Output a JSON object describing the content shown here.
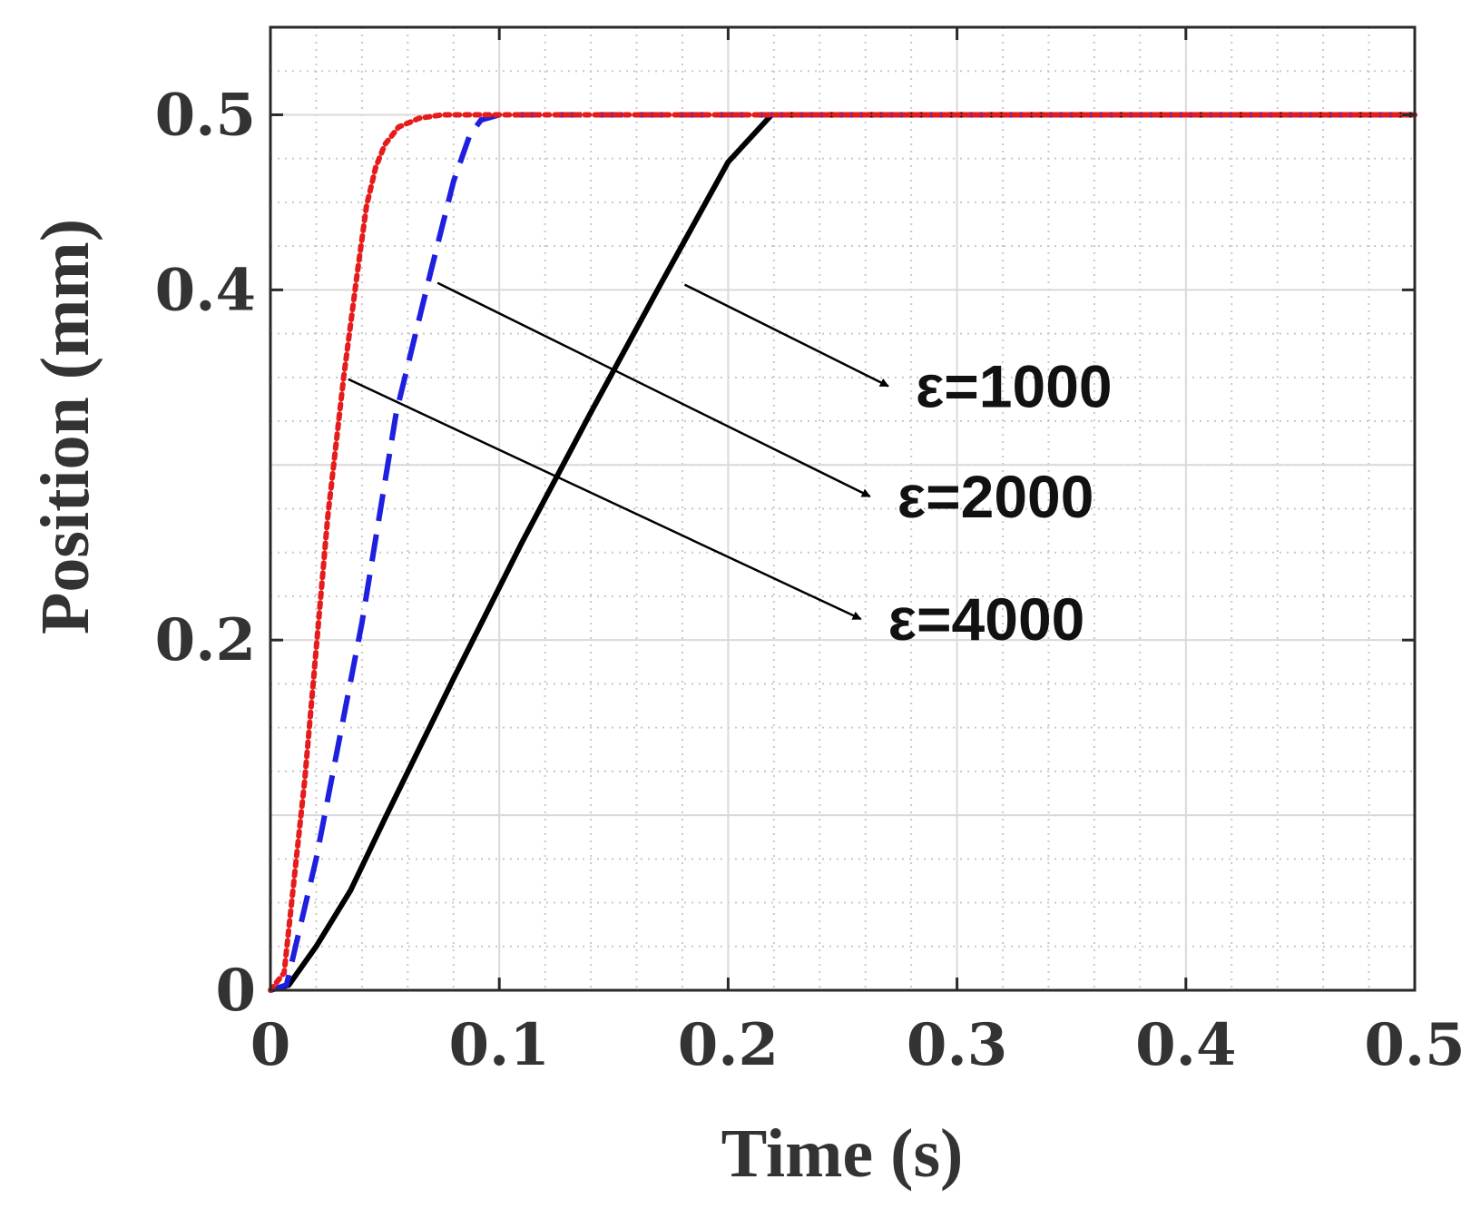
{
  "chart_data": {
    "type": "line",
    "title": "",
    "xlabel": "Time (s)",
    "ylabel": "Position (mm)",
    "xlim": [
      0,
      0.5
    ],
    "ylim": [
      0,
      0.55
    ],
    "xticks": [
      0,
      0.1,
      0.2,
      0.3,
      0.4,
      0.5
    ],
    "xtick_labels": [
      "0",
      "0.1",
      "0.2",
      "0.3",
      "0.4",
      "0.5"
    ],
    "yticks": [
      0,
      0.2,
      0.4,
      0.5
    ],
    "ytick_labels": [
      "0",
      "0.2",
      "0.4",
      "0.5"
    ],
    "grid": true,
    "minor_grid": true,
    "series": [
      {
        "name": "ε=1000",
        "color": "#000000",
        "style": "solid",
        "x": [
          0,
          0.008,
          0.02,
          0.035,
          0.05,
          0.08,
          0.11,
          0.14,
          0.17,
          0.2,
          0.219,
          0.24,
          0.3,
          0.4,
          0.5
        ],
        "y": [
          0,
          0.003,
          0.025,
          0.057,
          0.098,
          0.178,
          0.256,
          0.33,
          0.402,
          0.473,
          0.5,
          0.5,
          0.5,
          0.5,
          0.5
        ]
      },
      {
        "name": "ε=2000",
        "color": "#1f1fe0",
        "style": "dashed",
        "x": [
          0,
          0.007,
          0.02,
          0.04,
          0.055,
          0.07,
          0.08,
          0.087,
          0.092,
          0.1,
          0.2,
          0.3,
          0.4,
          0.5
        ],
        "y": [
          0,
          0.003,
          0.075,
          0.21,
          0.33,
          0.41,
          0.462,
          0.488,
          0.497,
          0.5,
          0.5,
          0.5,
          0.5,
          0.5
        ]
      },
      {
        "name": "ε=4000",
        "color": "#e61c1c",
        "style": "dotted",
        "x": [
          0,
          0.006,
          0.015,
          0.025,
          0.032,
          0.038,
          0.042,
          0.046,
          0.05,
          0.056,
          0.065,
          0.075,
          0.1,
          0.2,
          0.3,
          0.4,
          0.5
        ],
        "y": [
          0,
          0.01,
          0.12,
          0.27,
          0.35,
          0.41,
          0.448,
          0.47,
          0.483,
          0.493,
          0.498,
          0.5,
          0.5,
          0.5,
          0.5,
          0.5,
          0.5
        ]
      }
    ],
    "annotations": [
      {
        "text": "ε=1000",
        "series": "ε=1000",
        "from": [
          0.181,
          0.403
        ],
        "to": [
          0.27,
          0.345
        ]
      },
      {
        "text": "ε=2000",
        "series": "ε=2000",
        "from": [
          0.073,
          0.404
        ],
        "to": [
          0.262,
          0.282
        ]
      },
      {
        "text": "ε=4000",
        "series": "ε=4000",
        "from": [
          0.034,
          0.349
        ],
        "to": [
          0.258,
          0.212
        ]
      }
    ]
  }
}
